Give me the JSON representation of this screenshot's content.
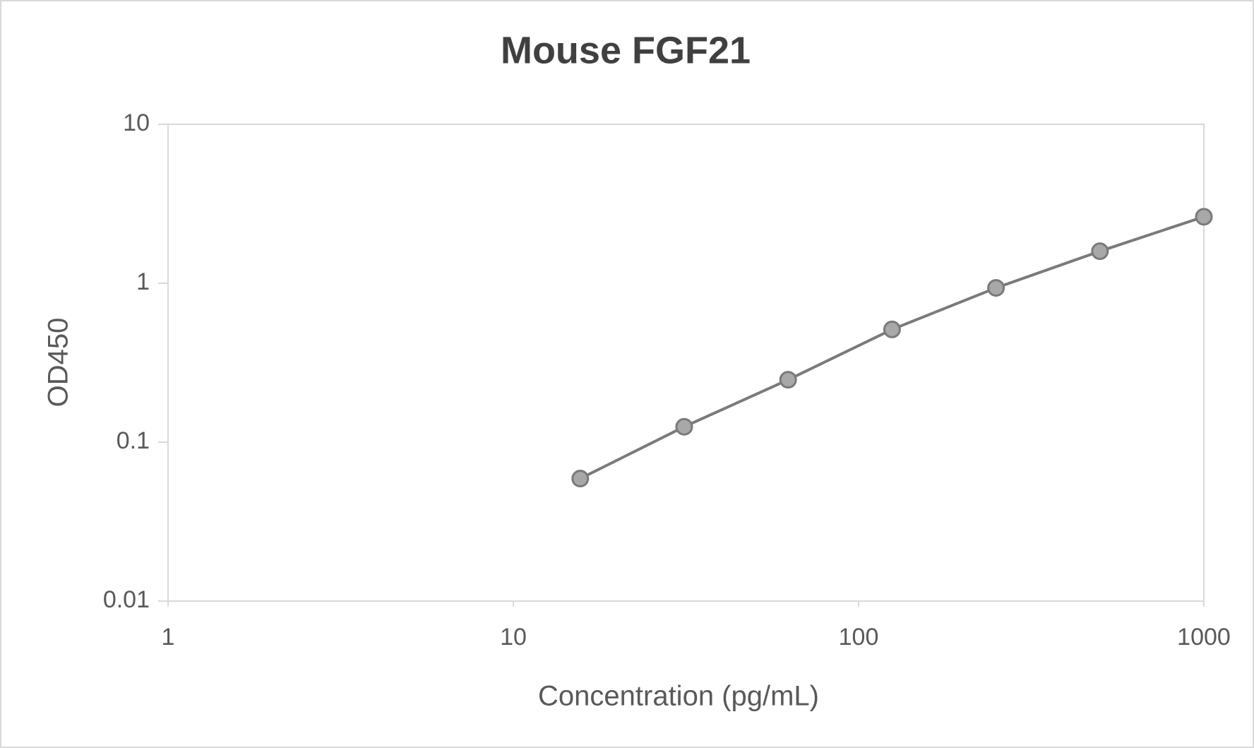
{
  "chart_data": {
    "type": "line",
    "title": "Mouse FGF21",
    "x_label": "Concentration (pg/mL)",
    "y_label": "OD450",
    "x": [
      15.625,
      31.25,
      62.5,
      125,
      250,
      500,
      1000
    ],
    "series": [
      {
        "name": "OD450",
        "color": "#7a7a7a",
        "marker_color": "#a8a8a8",
        "values": [
          0.059,
          0.125,
          0.247,
          0.512,
          0.935,
          1.59,
          2.62
        ]
      }
    ],
    "xscale": "log",
    "yscale": "log",
    "xlim": [
      1,
      1000
    ],
    "ylim": [
      0.01,
      10
    ],
    "xticks": [
      1,
      10,
      100,
      1000
    ],
    "yticks": [
      0.01,
      0.1,
      1,
      10
    ],
    "legend": false
  }
}
